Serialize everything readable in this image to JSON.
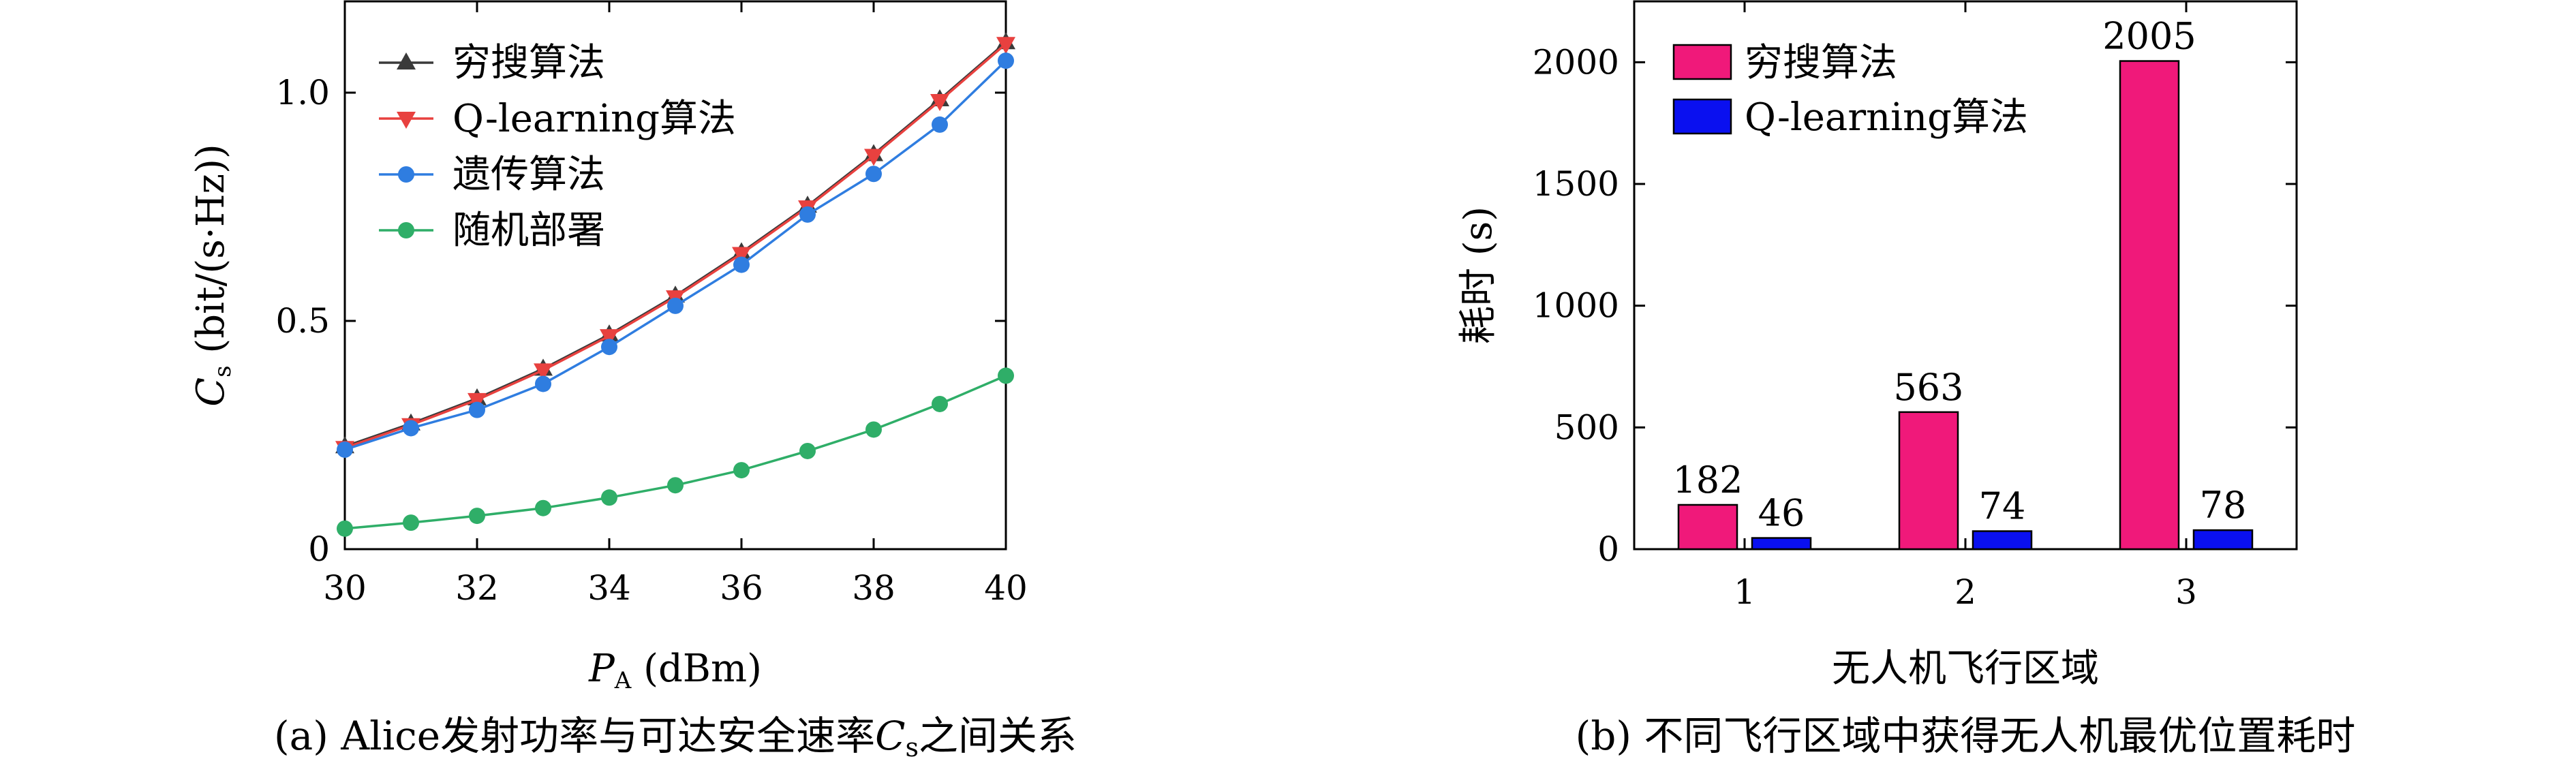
{
  "colors": {
    "exhaustive": "#3a3a3a",
    "qlearning": "#e8413f",
    "genetic": "#2f7de0",
    "random": "#2fae68",
    "bar_exhaustive": "#f0197a",
    "bar_qlearning": "#0a10f0"
  },
  "chart_data": [
    {
      "type": "line",
      "xlabel_main": "P",
      "xlabel_sub": "A",
      "xlabel_unit": " (dBm)",
      "ylabel_main": "C",
      "ylabel_sub": "s",
      "ylabel_unit": " (bit/(s·Hz))",
      "xlim": [
        30,
        40
      ],
      "ylim": [
        0,
        1.2
      ],
      "xticks": [
        30,
        32,
        34,
        36,
        38,
        40
      ],
      "yticks": [
        0,
        0.5,
        1.0
      ],
      "ytick_labels": [
        "0",
        "0.5",
        "1.0"
      ],
      "x": [
        30,
        31,
        32,
        33,
        34,
        35,
        36,
        37,
        38,
        39,
        40
      ],
      "series": [
        {
          "name": "穷搜算法",
          "marker": "triangle-up",
          "values": [
            0.225,
            0.275,
            0.33,
            0.395,
            0.47,
            0.555,
            0.65,
            0.752,
            0.865,
            0.985,
            1.11
          ]
        },
        {
          "name": "Q-learning算法",
          "marker": "triangle-down",
          "values": [
            0.222,
            0.272,
            0.327,
            0.392,
            0.467,
            0.552,
            0.647,
            0.749,
            0.862,
            0.982,
            1.107
          ]
        },
        {
          "name": "遗传算法",
          "marker": "circle",
          "values": [
            0.218,
            0.265,
            0.305,
            0.362,
            0.443,
            0.533,
            0.623,
            0.733,
            0.822,
            0.93,
            1.07
          ]
        },
        {
          "name": "随机部署",
          "marker": "circle",
          "values": [
            0.045,
            0.058,
            0.073,
            0.09,
            0.113,
            0.14,
            0.173,
            0.215,
            0.262,
            0.318,
            0.38
          ]
        }
      ],
      "caption": "(a) Alice发射功率与可达安全速率",
      "caption_var": "C",
      "caption_sub": "s",
      "caption_tail": "之间关系"
    },
    {
      "type": "bar",
      "xlabel": "无人机飞行区域",
      "ylabel": "耗时 (s)",
      "categories": [
        "1",
        "2",
        "3"
      ],
      "ylim": [
        0,
        2250
      ],
      "yticks": [
        0,
        500,
        1000,
        1500,
        2000
      ],
      "series": [
        {
          "name": "穷搜算法",
          "values": [
            182,
            563,
            2005
          ]
        },
        {
          "name": "Q-learning算法",
          "values": [
            46,
            74,
            78
          ]
        }
      ],
      "caption": "(b) 不同飞行区域中获得无人机最优位置耗时"
    }
  ]
}
